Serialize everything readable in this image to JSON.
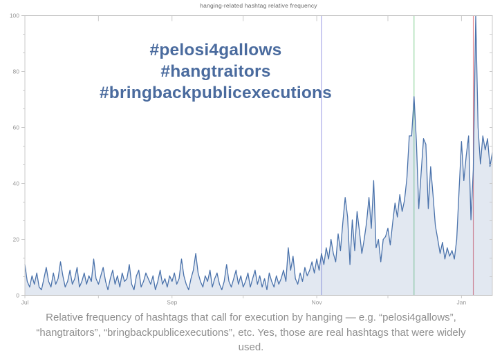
{
  "figure": {
    "title": "hanging-related hashtag relative frequency",
    "annotation": {
      "color": "#4a6b9e",
      "lines": [
        "#pelosi4gallows",
        "#hangtraitors",
        "#bringbackpublicexecutions"
      ]
    },
    "caption": {
      "color": "#8f8f8f",
      "text": "Relative frequency of hashtags that call for execution by hanging — e.g. “pelosi4gallows”, “hangtraitors”, “bringbackpublicexecutions”, etc. Yes, those are real hashtags that were widely used."
    }
  },
  "chart_data": {
    "type": "area",
    "title": "hanging-related hashtag relative frequency",
    "xlabel": "",
    "ylabel": "",
    "ylim": [
      0,
      100
    ],
    "y_ticks": [
      0,
      20,
      40,
      60,
      80,
      100
    ],
    "grid": false,
    "legend": false,
    "line_color": "#4a72ab",
    "fill_color": "#4a72ab",
    "fill_opacity": 0.16,
    "axis_color": "#c9c9c9",
    "tick_label_color": "#999999",
    "x_ticks": [
      {
        "label": "Jul",
        "index": 0
      },
      {
        "label": "",
        "index": 31
      },
      {
        "label": "Sep",
        "index": 62
      },
      {
        "label": "",
        "index": 92
      },
      {
        "label": "Nov",
        "index": 123
      },
      {
        "label": "",
        "index": 153
      },
      {
        "label": "Jan",
        "index": 184
      }
    ],
    "vlines": [
      {
        "x_index": 125,
        "color": "#a9aae8"
      },
      {
        "x_index": 164,
        "color": "#98d8a6"
      },
      {
        "x_index": 189,
        "color": "#e5868f"
      }
    ],
    "values": [
      11,
      5,
      3,
      7,
      4,
      8,
      3,
      2,
      6,
      10,
      5,
      3,
      8,
      4,
      6,
      12,
      7,
      3,
      5,
      9,
      4,
      6,
      10,
      3,
      5,
      8,
      4,
      7,
      5,
      13,
      6,
      4,
      7,
      10,
      5,
      2,
      6,
      9,
      4,
      7,
      3,
      8,
      5,
      6,
      11,
      4,
      2,
      7,
      9,
      3,
      5,
      8,
      6,
      4,
      7,
      2,
      5,
      9,
      4,
      6,
      3,
      7,
      5,
      8,
      4,
      6,
      13,
      7,
      4,
      2,
      6,
      9,
      15,
      8,
      5,
      3,
      7,
      5,
      9,
      3,
      6,
      8,
      4,
      2,
      5,
      11,
      5,
      3,
      6,
      9,
      4,
      7,
      3,
      5,
      8,
      3,
      6,
      9,
      4,
      7,
      3,
      6,
      2,
      8,
      5,
      3,
      7,
      4,
      6,
      9,
      5,
      17,
      9,
      14,
      6,
      4,
      8,
      5,
      10,
      7,
      9,
      12,
      8,
      13,
      9,
      15,
      11,
      17,
      13,
      20,
      15,
      12,
      22,
      16,
      26,
      35,
      28,
      11,
      27,
      16,
      30,
      23,
      15,
      20,
      26,
      35,
      24,
      41,
      17,
      20,
      12,
      20,
      21,
      24,
      18,
      26,
      33,
      28,
      36,
      30,
      34,
      42,
      57,
      57,
      71,
      55,
      31,
      44,
      56,
      54,
      31,
      46,
      36,
      25,
      20,
      15,
      19,
      13,
      17,
      14,
      16,
      13,
      20,
      38,
      55,
      41,
      50,
      57,
      27,
      45,
      100,
      60,
      47,
      57,
      52,
      56,
      46,
      51
    ]
  }
}
